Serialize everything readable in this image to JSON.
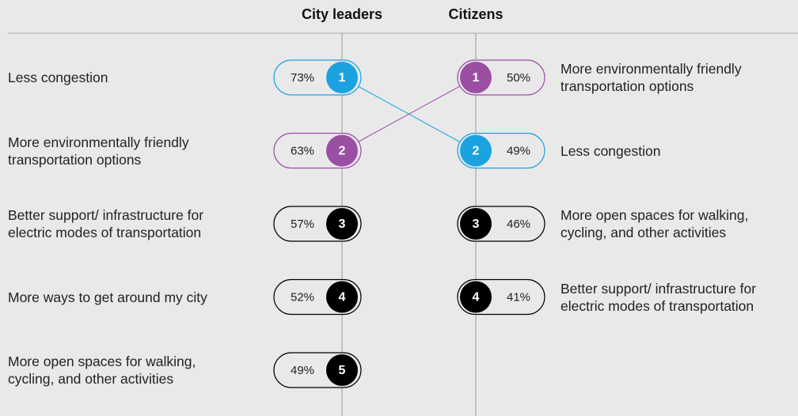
{
  "chart_data": {
    "type": "rank",
    "columns": [
      {
        "name": "City leaders",
        "labels": [
          "Less congestion",
          "More environmentally friendly transportation options",
          "Better support/ infrastructure for electric modes of transportation",
          "More ways to get around my city",
          "More open spaces for walking, cycling, and other activities"
        ],
        "ranks": [
          1,
          2,
          3,
          4,
          5
        ],
        "values": [
          73,
          63,
          57,
          52,
          49
        ],
        "value_labels": [
          "73%",
          "63%",
          "57%",
          "52%",
          "49%"
        ],
        "colors": [
          "#1aa3e0",
          "#9b4fa3",
          "#000000",
          "#000000",
          "#000000"
        ]
      },
      {
        "name": "Citizens",
        "labels": [
          "More environmentally friendly transportation options",
          "Less congestion",
          "More open spaces for walking, cycling, and other activities",
          "Better support/ infrastructure for electric modes of transportation"
        ],
        "ranks": [
          1,
          2,
          3,
          4
        ],
        "values": [
          50,
          49,
          46,
          41
        ],
        "value_labels": [
          "50%",
          "49%",
          "46%",
          "41%"
        ],
        "colors": [
          "#9b4fa3",
          "#1aa3e0",
          "#000000",
          "#000000"
        ]
      }
    ]
  }
}
